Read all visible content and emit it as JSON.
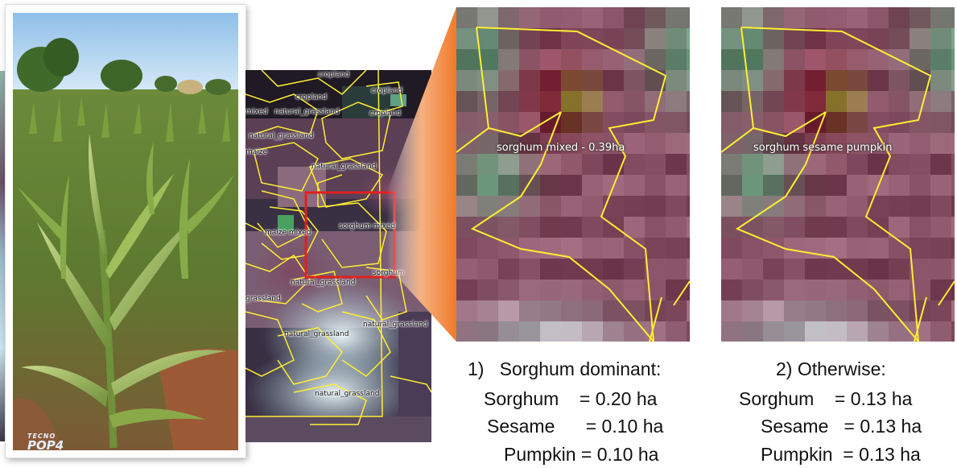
{
  "photo": {
    "watermark_small": "TECNO",
    "watermark_big": "POP4"
  },
  "map": {
    "labels": [
      {
        "name": "cropland-1",
        "text": "cropland"
      },
      {
        "name": "cropland-2",
        "text": "cropland"
      },
      {
        "name": "cropland-3",
        "text": "cropland"
      },
      {
        "name": "cropland-4",
        "text": "cropland"
      },
      {
        "name": "mixed",
        "text": "mixed"
      },
      {
        "name": "natural-grassland-1",
        "text": "natural_grassland"
      },
      {
        "name": "natural-grassland-2",
        "text": "natural_grassland"
      },
      {
        "name": "maize",
        "text": "maize"
      },
      {
        "name": "natural-grassland-3",
        "text": "natural_grassland"
      },
      {
        "name": "maize-mixed",
        "text": "maize mixed"
      },
      {
        "name": "sorghum-mixed",
        "text": "sorghum mixed"
      },
      {
        "name": "sorghum",
        "text": "sorghum"
      },
      {
        "name": "natural-grassland-4",
        "text": "natural_grassland"
      },
      {
        "name": "grassland",
        "text": "grassland"
      },
      {
        "name": "natural-grassland-5",
        "text": "natural_grassland"
      },
      {
        "name": "natural-grassland-6",
        "text": "natural_grassland"
      },
      {
        "name": "natural-grassland-7",
        "text": "natural_grassland"
      }
    ],
    "highlight_color": "#e02020",
    "boundary_color": "#ffee33"
  },
  "zoom1": {
    "label": "sorghum mixed - 0.39ha"
  },
  "zoom2": {
    "label": "sorghum sesame pumpkin"
  },
  "caption1": {
    "title": "1)   Sorghum dominant:",
    "line1": "Sorghum    = 0.20 ha",
    "line2": "Sesame      = 0.10 ha",
    "line3": "Pumpkin = 0.10 ha"
  },
  "caption2": {
    "title": "2) Otherwise:",
    "line1": "Sorghum    = 0.13 ha",
    "line2": "Sesame   = 0.13 ha",
    "line3": "Pumpkin  = 0.13 ha"
  }
}
